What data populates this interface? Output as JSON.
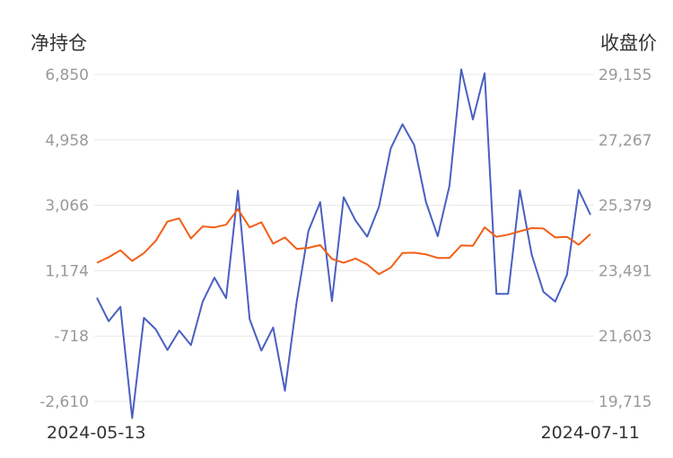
{
  "chart_data": {
    "type": "line",
    "left_axis_title": "净持仓",
    "right_axis_title": "收盘价",
    "left_ticks": [
      "6,850",
      "4,958",
      "3,066",
      "1,174",
      "-718",
      "-2,610"
    ],
    "right_ticks": [
      "29,155",
      "27,267",
      "25,379",
      "23,491",
      "21,603",
      "19,715"
    ],
    "ylim_left": [
      -2610,
      6850
    ],
    "ylim_right": [
      19715,
      29155
    ],
    "x_start_label": "2024-05-13",
    "x_end_label": "2024-07-11",
    "grid": "horizontal",
    "series": [
      {
        "axis": "left",
        "color": "#4a5fc1",
        "values": [
          390,
          -290,
          130,
          -3090,
          -190,
          -520,
          -1120,
          -560,
          -980,
          280,
          970,
          380,
          3490,
          -230,
          -1140,
          -470,
          -2300,
          270,
          2320,
          3160,
          290,
          3300,
          2630,
          2160,
          3020,
          4710,
          5410,
          4810,
          3160,
          2170,
          3630,
          7000,
          5550,
          6890,
          500,
          500,
          3500,
          1640,
          560,
          280,
          1050,
          3510,
          2790
        ]
      },
      {
        "axis": "right",
        "color": "#f25f16",
        "values": [
          23720,
          23880,
          24080,
          23770,
          24000,
          24350,
          24910,
          25000,
          24420,
          24770,
          24740,
          24820,
          25270,
          24740,
          24890,
          24270,
          24450,
          24120,
          24150,
          24230,
          23830,
          23720,
          23840,
          23670,
          23390,
          23580,
          24000,
          24010,
          23960,
          23860,
          23860,
          24220,
          24210,
          24740,
          24470,
          24530,
          24630,
          24720,
          24710,
          24450,
          24470,
          24240,
          24550
        ]
      }
    ]
  }
}
